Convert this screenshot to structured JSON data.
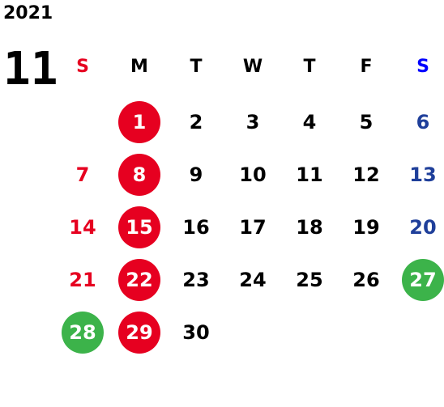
{
  "year": "2021",
  "month": "11",
  "weekdays": [
    "S",
    "M",
    "T",
    "W",
    "T",
    "F",
    "S"
  ],
  "colors": {
    "default": "#000000",
    "sunday": "#e60020",
    "saturday": "#1f3f9a",
    "saturday_header": "#0000ff",
    "holiday_red": "#e60020",
    "holiday_green": "#3cb34a",
    "circle_text": "#ffffff"
  },
  "weeks": [
    [
      "",
      "1",
      "2",
      "3",
      "4",
      "5",
      "6"
    ],
    [
      "7",
      "8",
      "9",
      "10",
      "11",
      "12",
      "13"
    ],
    [
      "14",
      "15",
      "16",
      "17",
      "18",
      "19",
      "20"
    ],
    [
      "21",
      "22",
      "23",
      "24",
      "25",
      "26",
      "27"
    ],
    [
      "28",
      "29",
      "30",
      "",
      "",
      "",
      ""
    ]
  ],
  "highlights": {
    "1": "red",
    "8": "red",
    "15": "red",
    "22": "red",
    "29": "red",
    "27": "green",
    "28": "green"
  }
}
